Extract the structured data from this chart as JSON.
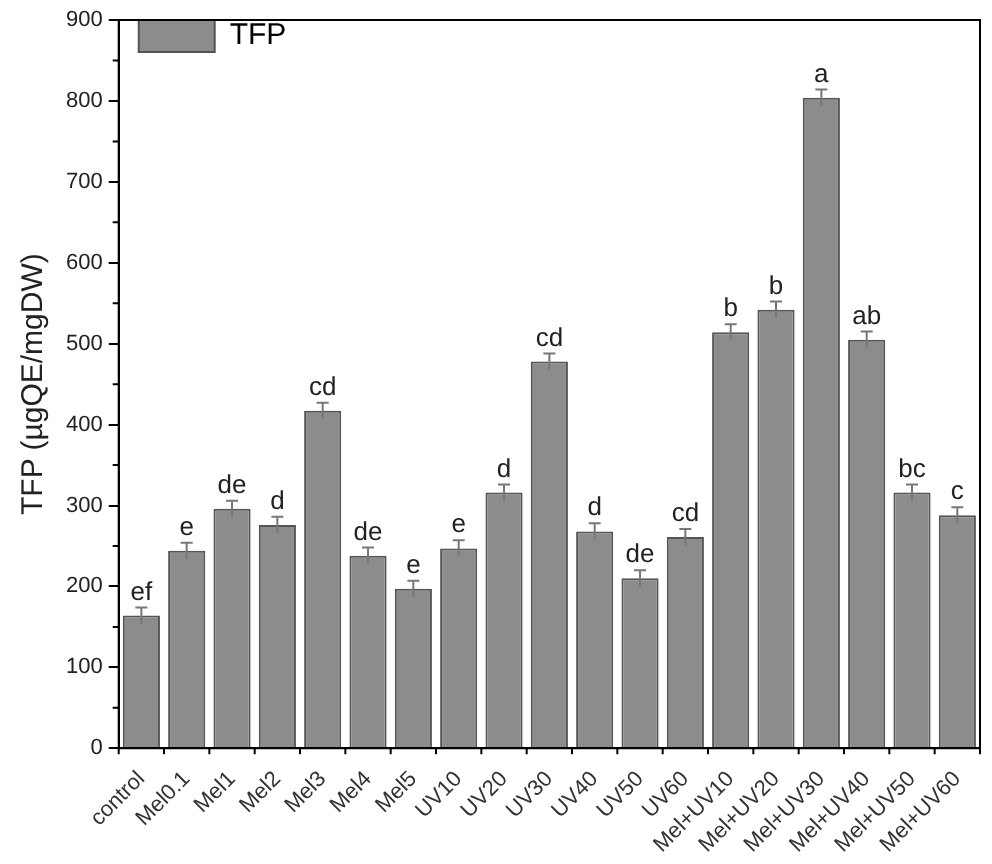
{
  "chart_data": {
    "type": "bar",
    "ylabel": "TFP (µgQE/mgDW)",
    "categories": [
      "control",
      "Mel0.1",
      "Mel1",
      "Mel2",
      "Mel3",
      "Mel4",
      "Mel5",
      "UV10",
      "UV20",
      "UV30",
      "UV40",
      "UV50",
      "UV60",
      "Mel+UV10",
      "Mel+UV20",
      "Mel+UV30",
      "Mel+UV40",
      "Mel+UV50",
      "Mel+UV60"
    ],
    "series": [
      {
        "name": "TFP",
        "color": "#8c8c8c",
        "values": [
          164,
          244,
          296,
          276,
          417,
          238,
          197,
          247,
          316,
          478,
          268,
          210,
          261,
          514,
          542,
          804,
          505,
          316,
          288
        ],
        "errors": [
          10,
          10,
          10,
          10,
          10,
          10,
          10,
          10,
          10,
          10,
          10,
          10,
          10,
          10,
          10,
          10,
          10,
          10,
          10
        ]
      }
    ],
    "ylim": [
      0,
      900
    ],
    "yticks": [
      0,
      100,
      200,
      300,
      400,
      500,
      600,
      700,
      800,
      900
    ],
    "grid": false,
    "legend": "top left",
    "annotations": [
      {
        "text": "ef",
        "x": "control",
        "y": 174
      },
      {
        "text": "e",
        "x": "Mel0.1",
        "y": 254
      },
      {
        "text": "de",
        "x": "Mel1",
        "y": 306
      },
      {
        "text": "d",
        "x": "Mel2",
        "y": 286
      },
      {
        "text": "cd",
        "x": "Mel3",
        "y": 427
      },
      {
        "text": "de",
        "x": "Mel4",
        "y": 248
      },
      {
        "text": "e",
        "x": "Mel5",
        "y": 207
      },
      {
        "text": "e",
        "x": "UV10",
        "y": 257
      },
      {
        "text": "d",
        "x": "UV20",
        "y": 326
      },
      {
        "text": "cd",
        "x": "UV30",
        "y": 488
      },
      {
        "text": "d",
        "x": "UV40",
        "y": 278
      },
      {
        "text": "de",
        "x": "UV50",
        "y": 220
      },
      {
        "text": "cd",
        "x": "UV60",
        "y": 271
      },
      {
        "text": "b",
        "x": "Mel+UV10",
        "y": 524
      },
      {
        "text": "b",
        "x": "Mel+UV20",
        "y": 552
      },
      {
        "text": "a",
        "x": "Mel+UV30",
        "y": 814
      },
      {
        "text": "ab",
        "x": "Mel+UV40",
        "y": 515
      },
      {
        "text": "bc",
        "x": "Mel+UV50",
        "y": 326
      },
      {
        "text": "c",
        "x": "Mel+UV60",
        "y": 298
      }
    ]
  }
}
